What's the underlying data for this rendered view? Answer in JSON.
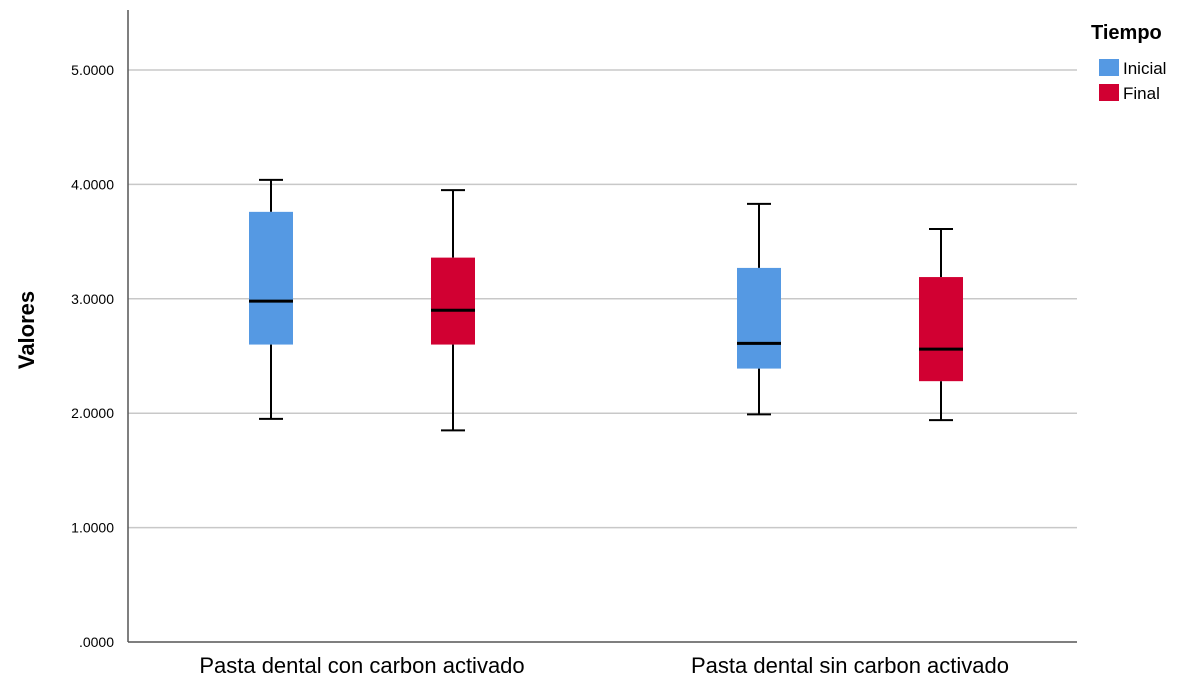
{
  "chart_data": {
    "type": "boxplot",
    "ylabel": "Valores",
    "xlabel": "",
    "ylim": [
      0,
      5.5
    ],
    "yticks": [
      ".0000",
      "1.0000",
      "2.0000",
      "3.0000",
      "4.0000",
      "5.0000"
    ],
    "ytick_values": [
      0,
      1,
      2,
      3,
      4,
      5
    ],
    "grid": true,
    "categories": [
      "Pasta dental con carbon activado",
      "Pasta dental sin carbon activado"
    ],
    "legend": {
      "title": "Tiempo",
      "placement": "top-right"
    },
    "series": [
      {
        "name": "Inicial",
        "color": "#5599e3",
        "boxes": [
          {
            "min": 1.95,
            "q1": 2.6,
            "median": 2.98,
            "q3": 3.76,
            "max": 4.04
          },
          {
            "min": 1.99,
            "q1": 2.39,
            "median": 2.61,
            "q3": 3.27,
            "max": 3.83
          }
        ]
      },
      {
        "name": "Final",
        "color": "#d10032",
        "boxes": [
          {
            "min": 1.85,
            "q1": 2.6,
            "median": 2.9,
            "q3": 3.36,
            "max": 3.95
          },
          {
            "min": 1.94,
            "q1": 2.28,
            "median": 2.56,
            "q3": 3.19,
            "max": 3.61
          }
        ]
      }
    ]
  }
}
